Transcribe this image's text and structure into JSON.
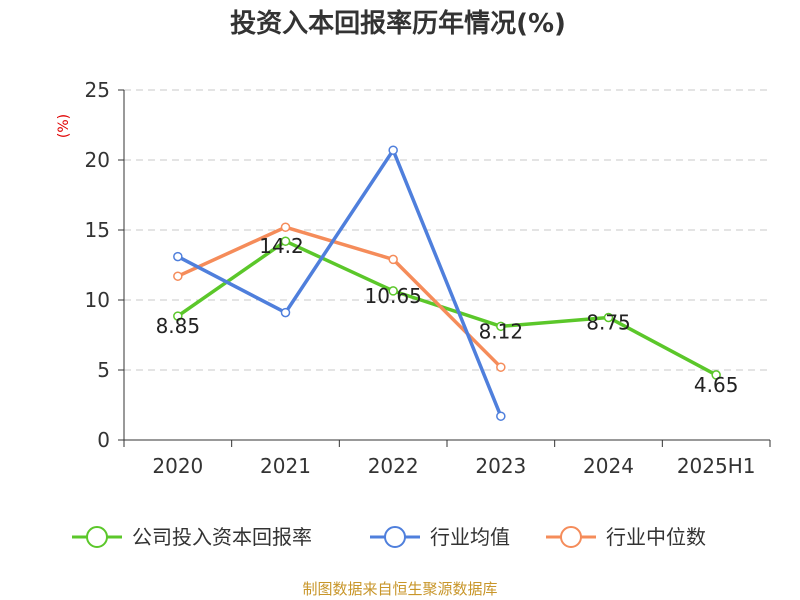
{
  "chart_data": {
    "type": "line",
    "title": "投资入本回报率历年情况(%)",
    "ylabel": "(%)",
    "categories": [
      "2020",
      "2021",
      "2022",
      "2023",
      "2024",
      "2025H1"
    ],
    "y_ticks": [
      "0",
      "5",
      "10",
      "15",
      "20",
      "25"
    ],
    "ylim": [
      0,
      25
    ],
    "grid": true,
    "legend_position": "bottom",
    "series": [
      {
        "name": "公司投入资本回报率",
        "color": "#5bc72a",
        "values": [
          8.85,
          14.2,
          10.65,
          8.12,
          8.75,
          4.65
        ],
        "labels": [
          "8.85",
          "14.2",
          "10.65",
          "8.12",
          "8.75",
          "4.65"
        ]
      },
      {
        "name": "行业均值",
        "color": "#4f7fdc",
        "values": [
          13.1,
          9.1,
          20.7,
          1.7,
          null,
          null
        ]
      },
      {
        "name": "行业中位数",
        "color": "#f58c5a",
        "values": [
          11.7,
          15.2,
          12.9,
          5.2,
          null,
          null
        ]
      }
    ]
  },
  "source": "制图数据来自恒生聚源数据库"
}
